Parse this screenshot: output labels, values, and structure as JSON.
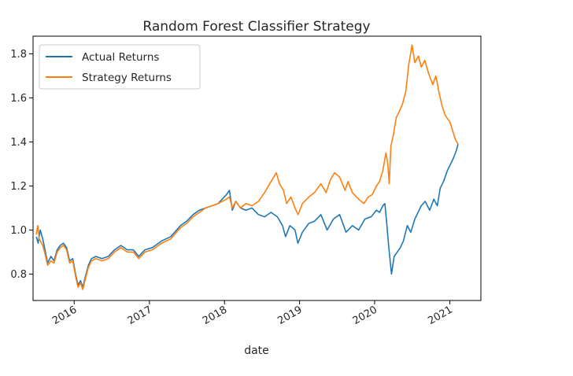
{
  "chart_data": {
    "type": "line",
    "title": "Random Forest Classifier Strategy",
    "xlabel": "date",
    "ylabel": "",
    "x_ticks": [
      "2016",
      "2017",
      "2018",
      "2019",
      "2020",
      "2021"
    ],
    "y_ticks": [
      "0.8",
      "1.0",
      "1.2",
      "1.4",
      "1.6",
      "1.8"
    ],
    "xlim": [
      "2015-06-15",
      "2021-06-01"
    ],
    "ylim": [
      0.68,
      1.88
    ],
    "grid": false,
    "legend_position": "upper-left",
    "series": [
      {
        "name": "Actual Returns",
        "color": "#1f77b4",
        "points": [
          [
            "2015-07-01",
            0.97
          ],
          [
            "2015-07-10",
            0.94
          ],
          [
            "2015-07-20",
            1.0
          ],
          [
            "2015-08-01",
            0.96
          ],
          [
            "2015-08-10",
            0.92
          ],
          [
            "2015-08-25",
            0.85
          ],
          [
            "2015-09-10",
            0.88
          ],
          [
            "2015-09-25",
            0.86
          ],
          [
            "2015-10-10",
            0.91
          ],
          [
            "2015-10-25",
            0.93
          ],
          [
            "2015-11-10",
            0.94
          ],
          [
            "2015-11-25",
            0.92
          ],
          [
            "2015-12-10",
            0.86
          ],
          [
            "2015-12-25",
            0.87
          ],
          [
            "2016-01-10",
            0.79
          ],
          [
            "2016-01-20",
            0.75
          ],
          [
            "2016-02-01",
            0.77
          ],
          [
            "2016-02-12",
            0.74
          ],
          [
            "2016-02-25",
            0.79
          ],
          [
            "2016-03-10",
            0.84
          ],
          [
            "2016-03-25",
            0.87
          ],
          [
            "2016-04-15",
            0.88
          ],
          [
            "2016-05-15",
            0.87
          ],
          [
            "2016-06-15",
            0.88
          ],
          [
            "2016-07-15",
            0.91
          ],
          [
            "2016-08-15",
            0.93
          ],
          [
            "2016-09-15",
            0.91
          ],
          [
            "2016-10-15",
            0.91
          ],
          [
            "2016-11-10",
            0.88
          ],
          [
            "2016-12-10",
            0.91
          ],
          [
            "2017-01-15",
            0.92
          ],
          [
            "2017-03-01",
            0.95
          ],
          [
            "2017-04-15",
            0.97
          ],
          [
            "2017-06-01",
            1.02
          ],
          [
            "2017-07-01",
            1.04
          ],
          [
            "2017-08-01",
            1.07
          ],
          [
            "2017-09-01",
            1.09
          ],
          [
            "2017-10-01",
            1.1
          ],
          [
            "2017-11-01",
            1.11
          ],
          [
            "2017-12-01",
            1.12
          ],
          [
            "2018-01-10",
            1.16
          ],
          [
            "2018-01-25",
            1.18
          ],
          [
            "2018-02-08",
            1.09
          ],
          [
            "2018-02-25",
            1.13
          ],
          [
            "2018-03-20",
            1.1
          ],
          [
            "2018-04-15",
            1.09
          ],
          [
            "2018-05-15",
            1.1
          ],
          [
            "2018-06-15",
            1.07
          ],
          [
            "2018-07-15",
            1.06
          ],
          [
            "2018-08-15",
            1.08
          ],
          [
            "2018-09-15",
            1.06
          ],
          [
            "2018-10-10",
            1.02
          ],
          [
            "2018-10-25",
            0.97
          ],
          [
            "2018-11-15",
            1.02
          ],
          [
            "2018-12-10",
            1.0
          ],
          [
            "2018-12-24",
            0.94
          ],
          [
            "2019-01-15",
            0.99
          ],
          [
            "2019-02-15",
            1.03
          ],
          [
            "2019-03-15",
            1.04
          ],
          [
            "2019-04-15",
            1.07
          ],
          [
            "2019-05-15",
            1.0
          ],
          [
            "2019-06-15",
            1.05
          ],
          [
            "2019-07-15",
            1.07
          ],
          [
            "2019-08-15",
            0.99
          ],
          [
            "2019-09-15",
            1.02
          ],
          [
            "2019-10-15",
            1.0
          ],
          [
            "2019-11-15",
            1.05
          ],
          [
            "2019-12-15",
            1.06
          ],
          [
            "2020-01-10",
            1.09
          ],
          [
            "2020-01-25",
            1.08
          ],
          [
            "2020-02-10",
            1.11
          ],
          [
            "2020-02-20",
            1.12
          ],
          [
            "2020-03-01",
            1.02
          ],
          [
            "2020-03-10",
            0.92
          ],
          [
            "2020-03-23",
            0.8
          ],
          [
            "2020-04-05",
            0.88
          ],
          [
            "2020-04-20",
            0.9
          ],
          [
            "2020-05-05",
            0.92
          ],
          [
            "2020-05-20",
            0.95
          ],
          [
            "2020-06-08",
            1.02
          ],
          [
            "2020-06-25",
            0.99
          ],
          [
            "2020-07-15",
            1.05
          ],
          [
            "2020-08-15",
            1.11
          ],
          [
            "2020-09-03",
            1.13
          ],
          [
            "2020-09-25",
            1.09
          ],
          [
            "2020-10-15",
            1.14
          ],
          [
            "2020-11-01",
            1.11
          ],
          [
            "2020-11-15",
            1.19
          ],
          [
            "2020-12-01",
            1.22
          ],
          [
            "2020-12-20",
            1.27
          ],
          [
            "2021-01-05",
            1.3
          ],
          [
            "2021-01-20",
            1.33
          ],
          [
            "2021-02-01",
            1.36
          ],
          [
            "2021-02-10",
            1.39
          ]
        ]
      },
      {
        "name": "Strategy Returns",
        "color": "#ff7f0e",
        "points": [
          [
            "2015-07-01",
            0.98
          ],
          [
            "2015-07-08",
            1.02
          ],
          [
            "2015-07-15",
            0.96
          ],
          [
            "2015-08-01",
            0.93
          ],
          [
            "2015-08-10",
            0.9
          ],
          [
            "2015-08-25",
            0.84
          ],
          [
            "2015-09-10",
            0.86
          ],
          [
            "2015-09-25",
            0.85
          ],
          [
            "2015-10-10",
            0.9
          ],
          [
            "2015-10-25",
            0.92
          ],
          [
            "2015-11-10",
            0.93
          ],
          [
            "2015-11-25",
            0.91
          ],
          [
            "2015-12-10",
            0.85
          ],
          [
            "2015-12-25",
            0.86
          ],
          [
            "2016-01-10",
            0.78
          ],
          [
            "2016-01-20",
            0.74
          ],
          [
            "2016-02-01",
            0.76
          ],
          [
            "2016-02-12",
            0.73
          ],
          [
            "2016-02-25",
            0.78
          ],
          [
            "2016-03-10",
            0.83
          ],
          [
            "2016-03-25",
            0.86
          ],
          [
            "2016-04-15",
            0.87
          ],
          [
            "2016-05-15",
            0.86
          ],
          [
            "2016-06-15",
            0.87
          ],
          [
            "2016-07-15",
            0.9
          ],
          [
            "2016-08-15",
            0.92
          ],
          [
            "2016-09-15",
            0.9
          ],
          [
            "2016-10-15",
            0.9
          ],
          [
            "2016-11-10",
            0.87
          ],
          [
            "2016-12-10",
            0.9
          ],
          [
            "2017-01-15",
            0.91
          ],
          [
            "2017-03-01",
            0.94
          ],
          [
            "2017-04-15",
            0.96
          ],
          [
            "2017-06-01",
            1.01
          ],
          [
            "2017-07-01",
            1.03
          ],
          [
            "2017-08-01",
            1.06
          ],
          [
            "2017-09-01",
            1.08
          ],
          [
            "2017-10-01",
            1.1
          ],
          [
            "2017-11-01",
            1.11
          ],
          [
            "2017-12-01",
            1.12
          ],
          [
            "2018-01-10",
            1.14
          ],
          [
            "2018-01-25",
            1.15
          ],
          [
            "2018-02-08",
            1.1
          ],
          [
            "2018-02-25",
            1.13
          ],
          [
            "2018-03-20",
            1.1
          ],
          [
            "2018-04-15",
            1.12
          ],
          [
            "2018-05-15",
            1.11
          ],
          [
            "2018-06-15",
            1.13
          ],
          [
            "2018-07-15",
            1.17
          ],
          [
            "2018-08-15",
            1.22
          ],
          [
            "2018-09-10",
            1.26
          ],
          [
            "2018-09-25",
            1.21
          ],
          [
            "2018-10-15",
            1.18
          ],
          [
            "2018-10-30",
            1.12
          ],
          [
            "2018-11-20",
            1.15
          ],
          [
            "2018-12-10",
            1.1
          ],
          [
            "2018-12-25",
            1.07
          ],
          [
            "2019-01-15",
            1.12
          ],
          [
            "2019-02-15",
            1.15
          ],
          [
            "2019-03-15",
            1.17
          ],
          [
            "2019-04-15",
            1.21
          ],
          [
            "2019-05-10",
            1.17
          ],
          [
            "2019-06-01",
            1.23
          ],
          [
            "2019-06-20",
            1.26
          ],
          [
            "2019-07-15",
            1.24
          ],
          [
            "2019-08-10",
            1.18
          ],
          [
            "2019-08-25",
            1.22
          ],
          [
            "2019-09-15",
            1.17
          ],
          [
            "2019-10-15",
            1.14
          ],
          [
            "2019-11-10",
            1.12
          ],
          [
            "2019-12-01",
            1.15
          ],
          [
            "2019-12-20",
            1.16
          ],
          [
            "2020-01-10",
            1.2
          ],
          [
            "2020-01-25",
            1.22
          ],
          [
            "2020-02-10",
            1.27
          ],
          [
            "2020-02-25",
            1.35
          ],
          [
            "2020-03-05",
            1.3
          ],
          [
            "2020-03-12",
            1.21
          ],
          [
            "2020-03-20",
            1.38
          ],
          [
            "2020-04-01",
            1.43
          ],
          [
            "2020-04-15",
            1.51
          ],
          [
            "2020-05-01",
            1.54
          ],
          [
            "2020-05-15",
            1.57
          ],
          [
            "2020-06-01",
            1.63
          ],
          [
            "2020-06-15",
            1.75
          ],
          [
            "2020-07-01",
            1.84
          ],
          [
            "2020-07-15",
            1.76
          ],
          [
            "2020-08-01",
            1.79
          ],
          [
            "2020-08-15",
            1.74
          ],
          [
            "2020-09-01",
            1.77
          ],
          [
            "2020-09-20",
            1.71
          ],
          [
            "2020-10-10",
            1.66
          ],
          [
            "2020-10-25",
            1.7
          ],
          [
            "2020-11-10",
            1.62
          ],
          [
            "2020-11-25",
            1.56
          ],
          [
            "2020-12-10",
            1.52
          ],
          [
            "2021-01-01",
            1.49
          ],
          [
            "2021-01-15",
            1.45
          ],
          [
            "2021-01-28",
            1.41
          ],
          [
            "2021-02-10",
            1.39
          ]
        ]
      }
    ]
  }
}
